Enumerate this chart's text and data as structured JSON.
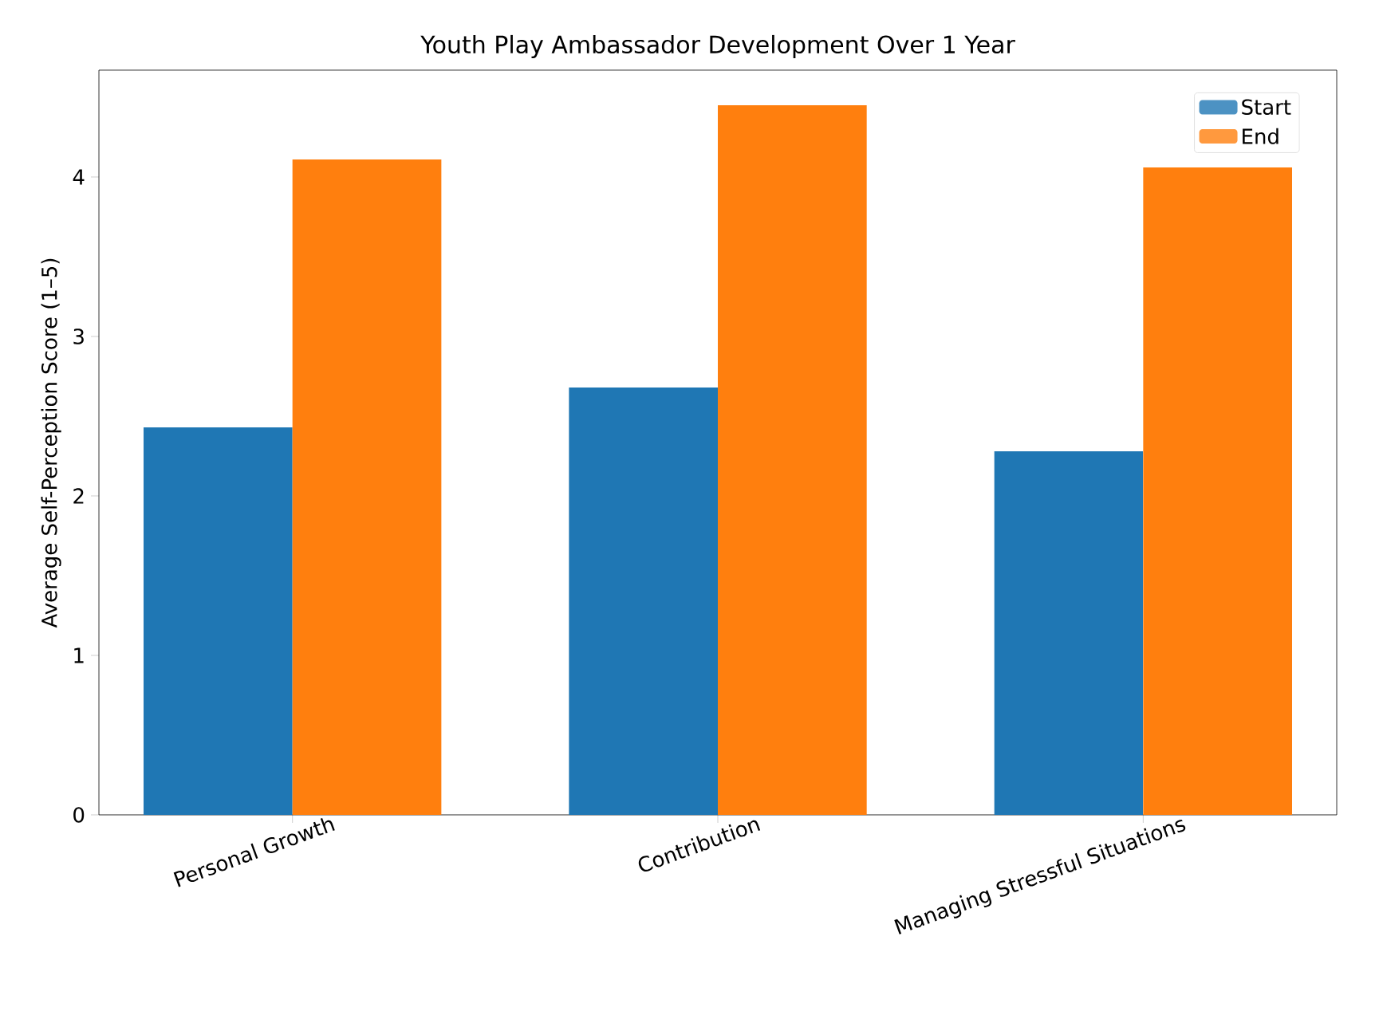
{
  "chart_data": {
    "type": "bar",
    "title": "Youth Play Ambassador Development Over 1 Year",
    "ylabel": "Average Self-Perception Score (1–5)",
    "categories": [
      "Personal Growth",
      "Contribution",
      "Managing Stressful Situations"
    ],
    "series": [
      {
        "name": "Start",
        "color": "#1f77b4",
        "values": [
          2.43,
          2.68,
          2.28
        ]
      },
      {
        "name": "End",
        "color": "#ff7f0e",
        "values": [
          4.11,
          4.45,
          4.06
        ]
      }
    ],
    "ylim": [
      0,
      4.67
    ],
    "yticks": [
      0,
      1,
      2,
      3,
      4
    ],
    "grid": false,
    "legend": "top right"
  }
}
